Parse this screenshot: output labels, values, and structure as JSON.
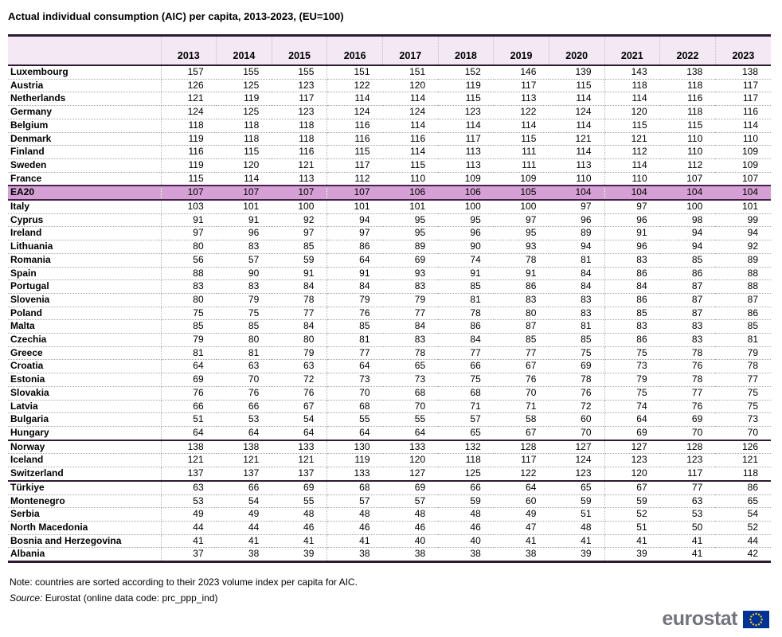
{
  "title": "Actual individual consumption (AIC) per capita, 2013-2023, (EU=100)",
  "note": "Note: countries are sorted according to their 2023 volume index per capita for AIC.",
  "source_label": "Source:",
  "source_text": " Eurostat (online data code: prc_ppp_ind)",
  "logo_text": "eurostat",
  "colors": {
    "header_bg": "#f4e8f4",
    "highlight_row_bg": "#d5a1d5",
    "rule_dark": "#2b1b30",
    "highlight_rule": "#47204e",
    "dotted_grid": "#a6a6a6",
    "logo_gray": "#73737f",
    "eu_flag_blue": "#003399",
    "eu_star_yellow": "#ffcc00"
  },
  "chart_data": {
    "type": "table",
    "title": "Actual individual consumption (AIC) per capita, 2013-2023, (EU=100)",
    "columns": [
      "2013",
      "2014",
      "2015",
      "2016",
      "2017",
      "2018",
      "2019",
      "2020",
      "2021",
      "2022",
      "2023"
    ],
    "row_header_label": "",
    "sections": [
      {
        "name": "eu-above-ea20",
        "highlight": false,
        "bottom_rule": false,
        "rows": [
          {
            "label": "Luxembourg",
            "values": [
              157,
              155,
              155,
              151,
              151,
              152,
              146,
              139,
              143,
              138,
              138
            ]
          },
          {
            "label": "Austria",
            "values": [
              126,
              125,
              123,
              122,
              120,
              119,
              117,
              115,
              118,
              118,
              117
            ]
          },
          {
            "label": "Netherlands",
            "values": [
              121,
              119,
              117,
              114,
              114,
              115,
              113,
              114,
              114,
              116,
              117
            ]
          },
          {
            "label": "Germany",
            "values": [
              124,
              125,
              123,
              124,
              124,
              123,
              122,
              124,
              120,
              118,
              116
            ]
          },
          {
            "label": "Belgium",
            "values": [
              118,
              118,
              118,
              116,
              114,
              114,
              114,
              114,
              115,
              115,
              114
            ]
          },
          {
            "label": "Denmark",
            "values": [
              119,
              118,
              118,
              116,
              116,
              117,
              115,
              121,
              121,
              110,
              110
            ]
          },
          {
            "label": "Finland",
            "values": [
              116,
              115,
              116,
              115,
              114,
              113,
              111,
              114,
              112,
              110,
              109
            ]
          },
          {
            "label": "Sweden",
            "values": [
              119,
              120,
              121,
              117,
              115,
              113,
              111,
              113,
              114,
              112,
              109
            ]
          },
          {
            "label": "France",
            "values": [
              115,
              114,
              113,
              112,
              110,
              109,
              109,
              110,
              110,
              107,
              107
            ]
          }
        ]
      },
      {
        "name": "ea20-aggregate",
        "highlight": true,
        "bottom_rule": false,
        "rows": [
          {
            "label": "EA20",
            "values": [
              107,
              107,
              107,
              107,
              106,
              106,
              105,
              104,
              104,
              104,
              104
            ]
          }
        ]
      },
      {
        "name": "eu-below-ea20",
        "highlight": false,
        "bottom_rule": true,
        "rows": [
          {
            "label": "Italy",
            "values": [
              103,
              101,
              100,
              101,
              101,
              100,
              100,
              97,
              97,
              100,
              101
            ]
          },
          {
            "label": "Cyprus",
            "values": [
              91,
              91,
              92,
              94,
              95,
              95,
              97,
              96,
              96,
              98,
              99
            ]
          },
          {
            "label": "Ireland",
            "values": [
              97,
              96,
              97,
              97,
              95,
              96,
              95,
              89,
              91,
              94,
              94
            ]
          },
          {
            "label": "Lithuania",
            "values": [
              80,
              83,
              85,
              86,
              89,
              90,
              93,
              94,
              96,
              94,
              92
            ]
          },
          {
            "label": "Romania",
            "values": [
              56,
              57,
              59,
              64,
              69,
              74,
              78,
              81,
              83,
              85,
              89
            ]
          },
          {
            "label": "Spain",
            "values": [
              88,
              90,
              91,
              91,
              93,
              91,
              91,
              84,
              86,
              86,
              88
            ]
          },
          {
            "label": "Portugal",
            "values": [
              83,
              83,
              84,
              84,
              83,
              85,
              86,
              84,
              84,
              87,
              88
            ]
          },
          {
            "label": "Slovenia",
            "values": [
              80,
              79,
              78,
              79,
              79,
              81,
              83,
              83,
              86,
              87,
              87
            ]
          },
          {
            "label": "Poland",
            "values": [
              75,
              75,
              77,
              76,
              77,
              78,
              80,
              83,
              85,
              87,
              86
            ]
          },
          {
            "label": "Malta",
            "values": [
              85,
              85,
              84,
              85,
              84,
              86,
              87,
              81,
              83,
              83,
              85
            ]
          },
          {
            "label": "Czechia",
            "values": [
              79,
              80,
              80,
              81,
              83,
              84,
              85,
              85,
              86,
              83,
              81
            ]
          },
          {
            "label": "Greece",
            "values": [
              81,
              81,
              79,
              77,
              78,
              77,
              77,
              75,
              75,
              78,
              79
            ]
          },
          {
            "label": "Croatia",
            "values": [
              64,
              63,
              63,
              64,
              65,
              66,
              67,
              69,
              73,
              76,
              78
            ]
          },
          {
            "label": "Estonia",
            "values": [
              69,
              70,
              72,
              73,
              73,
              75,
              76,
              78,
              79,
              78,
              77
            ]
          },
          {
            "label": "Slovakia",
            "values": [
              76,
              76,
              76,
              70,
              68,
              68,
              70,
              76,
              75,
              77,
              75
            ]
          },
          {
            "label": "Latvia",
            "values": [
              66,
              66,
              67,
              68,
              70,
              71,
              71,
              72,
              74,
              76,
              75
            ]
          },
          {
            "label": "Bulgaria",
            "values": [
              51,
              53,
              54,
              55,
              55,
              57,
              58,
              60,
              64,
              69,
              73
            ]
          },
          {
            "label": "Hungary",
            "values": [
              64,
              64,
              64,
              64,
              64,
              65,
              67,
              70,
              69,
              70,
              70
            ]
          }
        ]
      },
      {
        "name": "efta",
        "highlight": false,
        "bottom_rule": true,
        "rows": [
          {
            "label": "Norway",
            "values": [
              138,
              138,
              133,
              130,
              133,
              132,
              128,
              127,
              127,
              128,
              126
            ]
          },
          {
            "label": "Iceland",
            "values": [
              121,
              121,
              121,
              119,
              120,
              118,
              117,
              124,
              123,
              123,
              121
            ]
          },
          {
            "label": "Switzerland",
            "values": [
              137,
              137,
              137,
              133,
              127,
              125,
              122,
              123,
              120,
              117,
              118
            ]
          }
        ]
      },
      {
        "name": "candidates",
        "highlight": false,
        "bottom_rule": false,
        "rows": [
          {
            "label": "Türkiye",
            "values": [
              63,
              66,
              69,
              68,
              69,
              66,
              64,
              65,
              67,
              77,
              86
            ]
          },
          {
            "label": "Montenegro",
            "values": [
              53,
              54,
              55,
              57,
              57,
              59,
              60,
              59,
              59,
              63,
              65
            ]
          },
          {
            "label": "Serbia",
            "values": [
              49,
              49,
              48,
              48,
              48,
              48,
              49,
              51,
              52,
              53,
              54
            ]
          },
          {
            "label": "North Macedonia",
            "values": [
              44,
              44,
              46,
              46,
              46,
              46,
              47,
              48,
              51,
              50,
              52
            ]
          },
          {
            "label": "Bosnia and Herzegovina",
            "values": [
              41,
              41,
              41,
              41,
              40,
              40,
              41,
              41,
              41,
              41,
              44
            ]
          },
          {
            "label": "Albania",
            "values": [
              37,
              38,
              39,
              38,
              38,
              38,
              38,
              39,
              39,
              41,
              42
            ]
          }
        ]
      }
    ]
  }
}
